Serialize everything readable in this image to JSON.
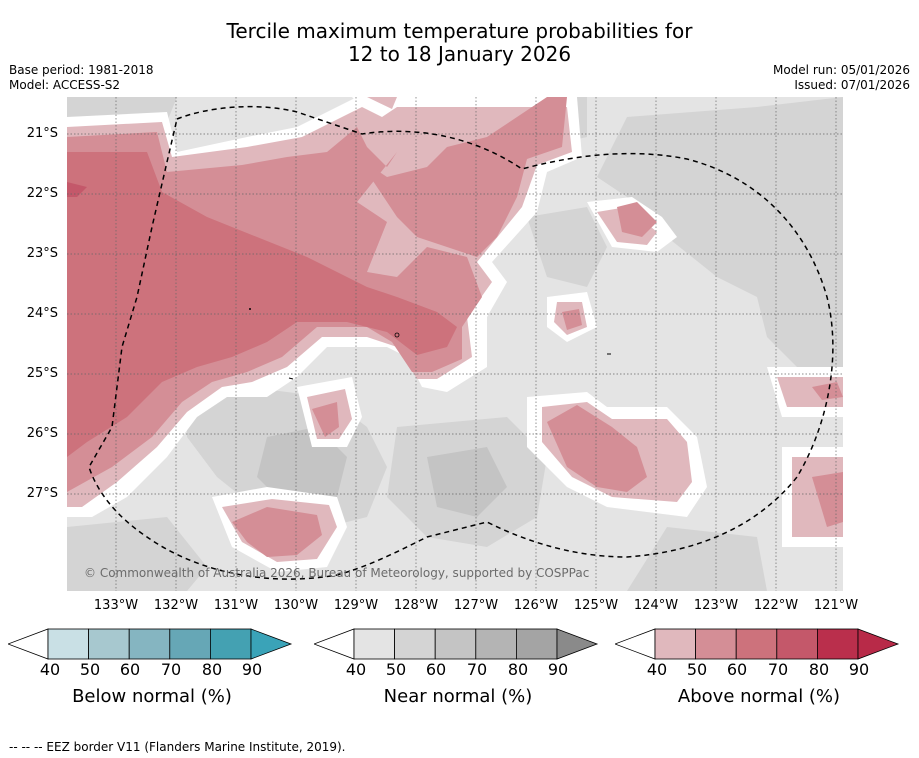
{
  "title": {
    "line1": "Tercile maximum temperature probabilities for",
    "line2": "12 to 18 January 2026"
  },
  "meta": {
    "base_period": "Base period: 1981-2018",
    "model": "Model: ACCESS-S2",
    "model_run": "Model run: 05/01/2026",
    "issued": "Issued: 07/01/2026"
  },
  "map": {
    "copyright": "© Commonwealth of Australia 2026, Bureau of Meteorology, supported by COSPPac",
    "lat_labels": [
      "21°S",
      "22°S",
      "23°S",
      "24°S",
      "25°S",
      "26°S",
      "27°S"
    ],
    "lon_labels": [
      "133°W",
      "132°W",
      "131°W",
      "130°W",
      "129°W",
      "128°W",
      "127°W",
      "126°W",
      "125°W",
      "124°W",
      "123°W",
      "122°W",
      "121°W"
    ],
    "eez_border": "EEZ border V11"
  },
  "colorbars": [
    {
      "title": "Below normal (%)",
      "ticks": [
        "40",
        "50",
        "60",
        "70",
        "80",
        "90"
      ],
      "colors": [
        "#ffffff",
        "#c9e0e5",
        "#a7c8cf",
        "#85b5c1",
        "#66a7b6",
        "#44a1b2",
        "#3aa3b8"
      ]
    },
    {
      "title": "Near normal (%)",
      "ticks": [
        "40",
        "50",
        "60",
        "70",
        "80",
        "90"
      ],
      "colors": [
        "#ffffff",
        "#e4e4e4",
        "#d4d4d4",
        "#c4c4c4",
        "#b4b4b4",
        "#a4a4a4",
        "#8a8a8a"
      ]
    },
    {
      "title": "Above normal (%)",
      "ticks": [
        "40",
        "50",
        "60",
        "70",
        "80",
        "90"
      ],
      "colors": [
        "#ffffff",
        "#e0b8bd",
        "#d48e96",
        "#cd727c",
        "#c4586a",
        "#ba2f4c",
        "#b82a48"
      ]
    }
  ],
  "footer": "-- -- -- EEZ border V11 (Flanders Marine Institute, 2019)."
}
